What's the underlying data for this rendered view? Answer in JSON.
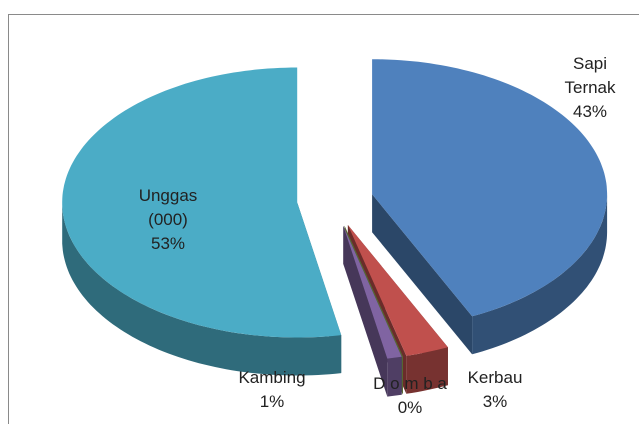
{
  "chart_data": {
    "type": "pie3d",
    "categories": [
      "Sapi Ternak",
      "Kerbau",
      "D o m b a",
      "Kambing",
      "Unggas (000)"
    ],
    "values": [
      43,
      3,
      0,
      1,
      53
    ],
    "value_labels": [
      "43%",
      "3%",
      "0%",
      "1%",
      "53%"
    ],
    "colors": [
      "#4f81bd",
      "#c0504d",
      "#9bbb59",
      "#8064a2",
      "#4bacc6"
    ]
  }
}
